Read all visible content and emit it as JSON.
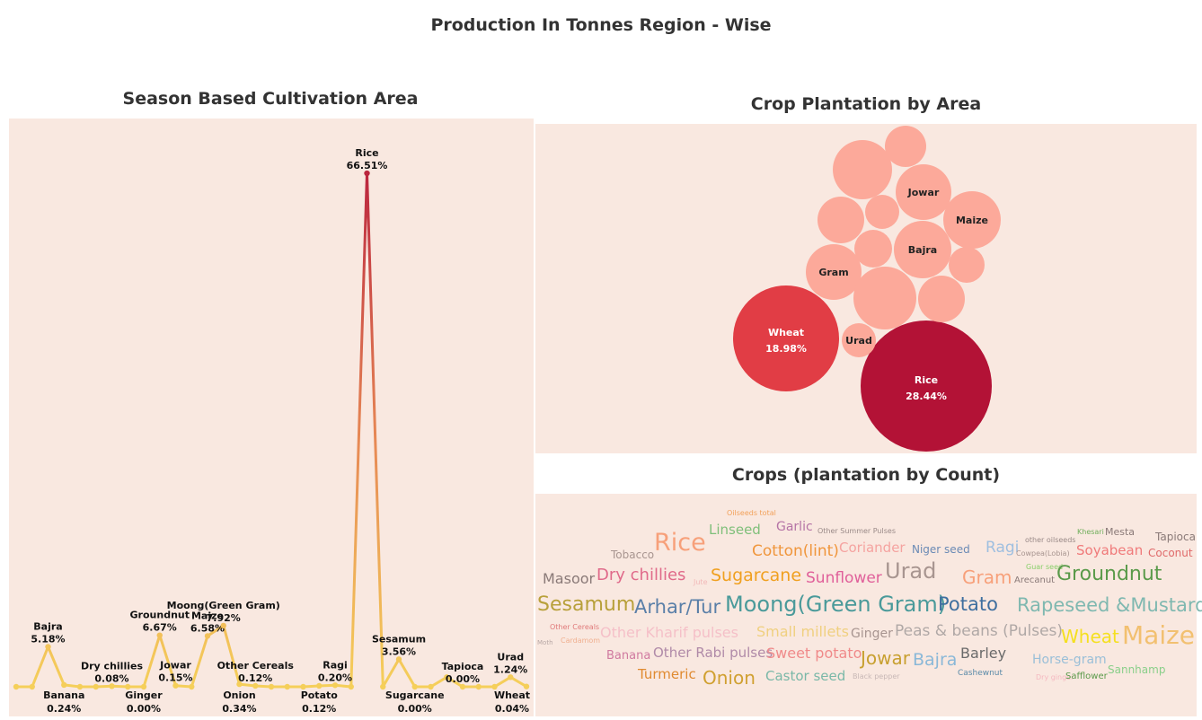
{
  "page": {
    "title": "Production In Tonnes Region - Wise"
  },
  "line_panel": {
    "title": "Season Based Cultivation Area"
  },
  "bubble_panel": {
    "title": "Crop Plantation by Area"
  },
  "cloud_panel": {
    "title": "Crops (plantation by Count)"
  },
  "colors": {
    "panel_bg": "#f9e8e0",
    "line_low": "#f5cf5a",
    "line_mid": "#e78a55",
    "line_high": "#b71c3c",
    "bubble_light": "#fca99a",
    "bubble_wheat": "#e13d45",
    "bubble_rice": "#b31236"
  },
  "chart_data": [
    {
      "type": "line",
      "title": "Season Based Cultivation Area",
      "xlabel": "",
      "ylabel": "",
      "unit": "%",
      "ylim": [
        0,
        70
      ],
      "grid": false,
      "legend": "none",
      "points": [
        {
          "label": "",
          "value": 0.0
        },
        {
          "label": "",
          "value": 0.0
        },
        {
          "label": "Bajra",
          "value": 5.18,
          "shown": "5.18%",
          "pos": "above"
        },
        {
          "label": "Banana",
          "value": 0.24,
          "shown": "0.24%",
          "pos": "below"
        },
        {
          "label": "",
          "value": 0.0
        },
        {
          "label": "",
          "value": 0.0
        },
        {
          "label": "Dry chillies",
          "value": 0.08,
          "shown": "0.08%",
          "pos": "above"
        },
        {
          "label": "",
          "value": 0.0
        },
        {
          "label": "Ginger",
          "value": 0.0,
          "shown": "0.00%",
          "pos": "below"
        },
        {
          "label": "Groundnut",
          "value": 6.67,
          "shown": "6.67%",
          "pos": "above"
        },
        {
          "label": "Jowar",
          "value": 0.15,
          "shown": "0.15%",
          "pos": "above"
        },
        {
          "label": "",
          "value": 0.0
        },
        {
          "label": "Maize",
          "value": 6.58,
          "shown": "6.58%",
          "pos": "above"
        },
        {
          "label": "Moong(Green Gram)",
          "value": 7.92,
          "shown": "7.92%",
          "pos": "above"
        },
        {
          "label": "Onion",
          "value": 0.34,
          "shown": "0.34%",
          "pos": "below"
        },
        {
          "label": "Other Cereals",
          "value": 0.12,
          "shown": "0.12%",
          "pos": "above"
        },
        {
          "label": "",
          "value": 0.0
        },
        {
          "label": "",
          "value": 0.0
        },
        {
          "label": "",
          "value": 0.0
        },
        {
          "label": "Potato",
          "value": 0.12,
          "shown": "0.12%",
          "pos": "below"
        },
        {
          "label": "Ragi",
          "value": 0.2,
          "shown": "0.20%",
          "pos": "above"
        },
        {
          "label": "",
          "value": 0.0
        },
        {
          "label": "Rice",
          "value": 66.51,
          "shown": "66.51%",
          "pos": "above"
        },
        {
          "label": "",
          "value": 0.0
        },
        {
          "label": "Sesamum",
          "value": 3.56,
          "shown": "3.56%",
          "pos": "above"
        },
        {
          "label": "Sugarcane",
          "value": 0.0,
          "shown": "0.00%",
          "pos": "below"
        },
        {
          "label": "",
          "value": 0.0
        },
        {
          "label": "",
          "value": 1.24
        },
        {
          "label": "Tapioca",
          "value": 0.0,
          "shown": "0.00%",
          "pos": "above"
        },
        {
          "label": "",
          "value": 0.0
        },
        {
          "label": "",
          "value": 0.0
        },
        {
          "label": "Urad",
          "value": 1.24,
          "shown": "1.24%",
          "pos": "above"
        },
        {
          "label": "Wheat",
          "value": 0.04,
          "shown": "0.04%",
          "pos": "below"
        }
      ]
    },
    {
      "type": "bubble",
      "title": "Crop Plantation by Area",
      "unit": "%",
      "bubbles": [
        {
          "label": "Rice",
          "value": 28.44,
          "shown": "28.44%",
          "color": "#b31236"
        },
        {
          "label": "Wheat",
          "value": 18.98,
          "shown": "18.98%",
          "color": "#e13d45"
        },
        {
          "label": "Gram",
          "color": "#fca99a"
        },
        {
          "label": "Jowar",
          "color": "#fca99a"
        },
        {
          "label": "Maize",
          "color": "#fca99a"
        },
        {
          "label": "Bajra",
          "color": "#fca99a"
        },
        {
          "label": "Urad",
          "color": "#fca99a"
        },
        {
          "label": "",
          "color": "#fca99a"
        },
        {
          "label": "",
          "color": "#fca99a"
        },
        {
          "label": "",
          "color": "#fca99a"
        },
        {
          "label": "",
          "color": "#fca99a"
        },
        {
          "label": "",
          "color": "#fca99a"
        },
        {
          "label": "",
          "color": "#fca99a"
        },
        {
          "label": "",
          "color": "#fca99a"
        },
        {
          "label": "",
          "color": "#fca99a"
        }
      ]
    },
    {
      "type": "wordcloud",
      "title": "Crops (plantation by Count)",
      "words": [
        {
          "text": "Oilseeds total",
          "color": "#f2a15a"
        },
        {
          "text": "Linseed",
          "color": "#7fbf7a"
        },
        {
          "text": "Garlic",
          "color": "#b574a6"
        },
        {
          "text": "Other Summer Pulses",
          "color": "#9a8a88"
        },
        {
          "text": "Khesari",
          "color": "#6fae5a"
        },
        {
          "text": "Mesta",
          "color": "#8a7a78"
        },
        {
          "text": "Tapioca",
          "color": "#8a7a78"
        },
        {
          "text": "Tobacco",
          "color": "#a89590"
        },
        {
          "text": "Rice",
          "color": "#f7a07a"
        },
        {
          "text": "Cotton(lint)",
          "color": "#f0963c"
        },
        {
          "text": "Coriander",
          "color": "#f5a3a0"
        },
        {
          "text": "Niger seed",
          "color": "#6a8ab5"
        },
        {
          "text": "Ragi",
          "color": "#9fbfe0"
        },
        {
          "text": "other oilseeds",
          "color": "#9a8a88"
        },
        {
          "text": "Cowpea(Lobia)",
          "color": "#a89590"
        },
        {
          "text": "Soyabean",
          "color": "#f07a7a"
        },
        {
          "text": "Coconut",
          "color": "#e06a6a"
        },
        {
          "text": "Masoor",
          "color": "#8a7a78"
        },
        {
          "text": "Dry chillies",
          "color": "#e06a8a"
        },
        {
          "text": "Jute",
          "color": "#f2b8b8"
        },
        {
          "text": "Sugarcane",
          "color": "#f0a020"
        },
        {
          "text": "Sunflower",
          "color": "#e0609a"
        },
        {
          "text": "Urad",
          "color": "#a89590"
        },
        {
          "text": "Gram",
          "color": "#f7a07a"
        },
        {
          "text": "Guar seed",
          "color": "#8acf6a"
        },
        {
          "text": "Arecanut",
          "color": "#8a7a78"
        },
        {
          "text": "Groundnut",
          "color": "#5a9a4a"
        },
        {
          "text": "Sesamum",
          "color": "#b8a03a"
        },
        {
          "text": "Arhar/Tur",
          "color": "#5a7fa8"
        },
        {
          "text": "Moong(Green Gram)",
          "color": "#4a9a9a"
        },
        {
          "text": "Potato",
          "color": "#3f6f9f"
        },
        {
          "text": "Rapeseed &Mustard",
          "color": "#7fb8b0"
        },
        {
          "text": "Other Cereals",
          "color": "#e07a7a"
        },
        {
          "text": "Other Kharif pulses",
          "color": "#f5c0c8"
        },
        {
          "text": "Small millets",
          "color": "#f0d080"
        },
        {
          "text": "Ginger",
          "color": "#a89590"
        },
        {
          "text": "Peas & beans (Pulses)",
          "color": "#b0a8a6"
        },
        {
          "text": "Wheat",
          "color": "#f5e020"
        },
        {
          "text": "Maize",
          "color": "#f2c070"
        },
        {
          "text": "Moth",
          "color": "#b8a8a6"
        },
        {
          "text": "Cardamom",
          "color": "#f0b090"
        },
        {
          "text": "Banana",
          "color": "#d07aa0"
        },
        {
          "text": "Other Rabi pulses",
          "color": "#b08aa8"
        },
        {
          "text": "Sweet potato",
          "color": "#f08a8a"
        },
        {
          "text": "Jowar",
          "color": "#c8a030"
        },
        {
          "text": "Bajra",
          "color": "#8ab8d8"
        },
        {
          "text": "Barley",
          "color": "#6a6a6a"
        },
        {
          "text": "Horse-gram",
          "color": "#9abfd8"
        },
        {
          "text": "Turmeric",
          "color": "#e08a30"
        },
        {
          "text": "Onion",
          "color": "#d0a030"
        },
        {
          "text": "Castor seed",
          "color": "#7ab8a8"
        },
        {
          "text": "Black pepper",
          "color": "#c8b8b6"
        },
        {
          "text": "Cashewnut",
          "color": "#5a8aa8"
        },
        {
          "text": "Dry ginger",
          "color": "#f5b8c0"
        },
        {
          "text": "Safflower",
          "color": "#5a9a4a"
        },
        {
          "text": "Sannhamp",
          "color": "#8acf8a"
        }
      ]
    }
  ]
}
